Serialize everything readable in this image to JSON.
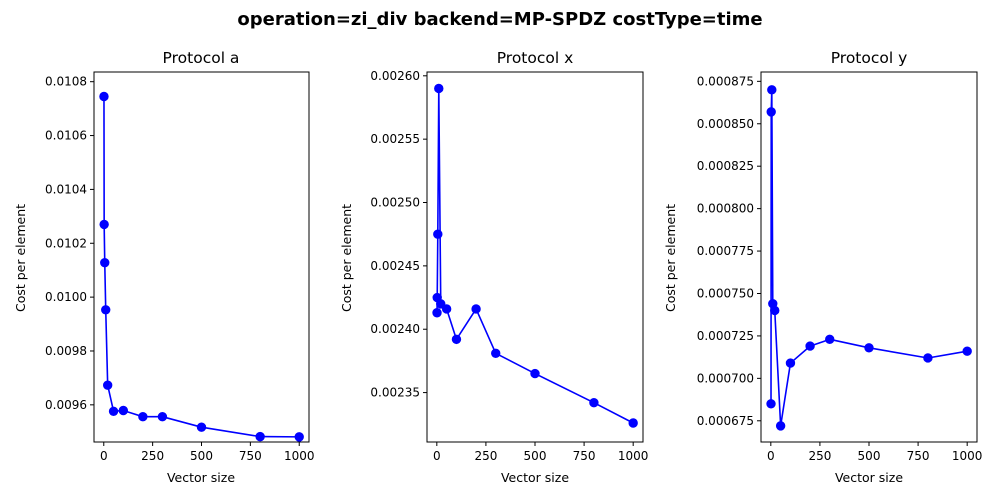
{
  "figure": {
    "suptitle": "operation=zi_div backend=MP-SPDZ costType=time"
  },
  "colors": {
    "series": "#0000ff",
    "axis": "#000000",
    "background": "#ffffff"
  },
  "chart_data": [
    {
      "type": "line",
      "title": "Protocol a",
      "xlabel": "Vector size",
      "ylabel": "Cost per element",
      "grid": false,
      "xlim": [
        -50,
        1050
      ],
      "ylim": [
        0.009462,
        0.010836
      ],
      "xticks": [
        0,
        250,
        500,
        750,
        1000
      ],
      "xtick_labels": [
        "0",
        "250",
        "500",
        "750",
        "1000"
      ],
      "yticks": [
        0.0096,
        0.0098,
        0.01,
        0.0102,
        0.0104,
        0.0106,
        0.0108
      ],
      "ytick_labels": [
        "0.0096",
        "0.0098",
        "0.0100",
        "0.0102",
        "0.0104",
        "0.0106",
        "0.0108"
      ],
      "series": [
        {
          "x": [
            1,
            2,
            5,
            10,
            20,
            50,
            100,
            200,
            300,
            500,
            800,
            1000
          ],
          "y": [
            0.010745,
            0.01027,
            0.010128,
            0.009953,
            0.009673,
            0.009576,
            0.009579,
            0.009556,
            0.009556,
            0.009517,
            0.009482,
            0.009481
          ]
        }
      ]
    },
    {
      "type": "line",
      "title": "Protocol x",
      "xlabel": "Vector size",
      "ylabel": "Cost per element",
      "grid": false,
      "xlim": [
        -50,
        1050
      ],
      "ylim": [
        0.002311,
        0.002603
      ],
      "xticks": [
        0,
        250,
        500,
        750,
        1000
      ],
      "xtick_labels": [
        "0",
        "250",
        "500",
        "750",
        "1000"
      ],
      "yticks": [
        0.00235,
        0.0024,
        0.00245,
        0.0025,
        0.00255,
        0.0026
      ],
      "ytick_labels": [
        "0.00235",
        "0.00240",
        "0.00245",
        "0.00250",
        "0.00255",
        "0.00260"
      ],
      "series": [
        {
          "x": [
            1,
            2,
            5,
            10,
            20,
            50,
            100,
            200,
            300,
            500,
            800,
            1000
          ],
          "y": [
            0.002413,
            0.002425,
            0.002475,
            0.00259,
            0.00242,
            0.002416,
            0.002392,
            0.002416,
            0.002381,
            0.002365,
            0.002342,
            0.002326
          ]
        }
      ]
    },
    {
      "type": "line",
      "title": "Protocol y",
      "xlabel": "Vector size",
      "ylabel": "Cost per element",
      "grid": false,
      "xlim": [
        -50,
        1050
      ],
      "ylim": [
        0.0006625,
        0.0008805
      ],
      "xticks": [
        0,
        250,
        500,
        750,
        1000
      ],
      "xtick_labels": [
        "0",
        "250",
        "500",
        "750",
        "1000"
      ],
      "yticks": [
        0.000675,
        0.0007,
        0.000725,
        0.00075,
        0.000775,
        0.0008,
        0.000825,
        0.00085,
        0.000875
      ],
      "ytick_labels": [
        "0.000675",
        "0.000700",
        "0.000725",
        "0.000750",
        "0.000775",
        "0.000800",
        "0.000825",
        "0.000850",
        "0.000875"
      ],
      "series": [
        {
          "x": [
            1,
            2,
            5,
            10,
            20,
            50,
            100,
            200,
            300,
            500,
            800,
            1000
          ],
          "y": [
            0.000685,
            0.000857,
            0.00087,
            0.000744,
            0.00074,
            0.000672,
            0.000709,
            0.000719,
            0.000723,
            0.000718,
            0.000712,
            0.000716
          ]
        }
      ]
    }
  ]
}
